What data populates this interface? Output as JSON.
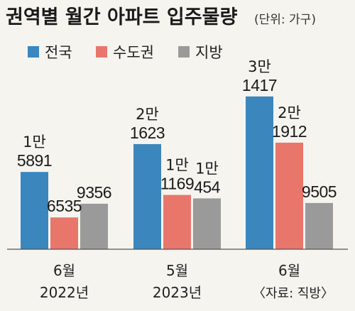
{
  "header": {
    "title": "권역별 월간 아파트 입주물량",
    "unit": "(단위: 가구)"
  },
  "source": "〈자료: 직방〉",
  "colors": {
    "전국": "#3a86bd",
    "수도권": "#e8766a",
    "지방": "#9a9a9a",
    "background": "#f6f4ef"
  },
  "chart_data": {
    "type": "bar",
    "categories": [
      {
        "month": "6월",
        "year": "2022년"
      },
      {
        "month": "5월",
        "year": "2023년"
      },
      {
        "month": "6월",
        "year": ""
      }
    ],
    "series": [
      {
        "name": "전국",
        "values": [
          15891,
          21623,
          31417
        ],
        "labels": [
          [
            "1만",
            "5891"
          ],
          [
            "2만",
            "1623"
          ],
          [
            "3만",
            "1417"
          ]
        ]
      },
      {
        "name": "수도권",
        "values": [
          6535,
          11169,
          21912
        ],
        "labels": [
          [
            "",
            "6535"
          ],
          [
            "1만",
            "1169"
          ],
          [
            "2만",
            "1912"
          ]
        ]
      },
      {
        "name": "지방",
        "values": [
          9356,
          10454,
          9505
        ],
        "labels": [
          [
            "",
            "9356"
          ],
          [
            "1만",
            "454"
          ],
          [
            "",
            "9505"
          ]
        ]
      }
    ],
    "xlabel": "",
    "ylabel": "",
    "ylim": [
      0,
      33000
    ],
    "grid": false,
    "legend": "top-left"
  }
}
